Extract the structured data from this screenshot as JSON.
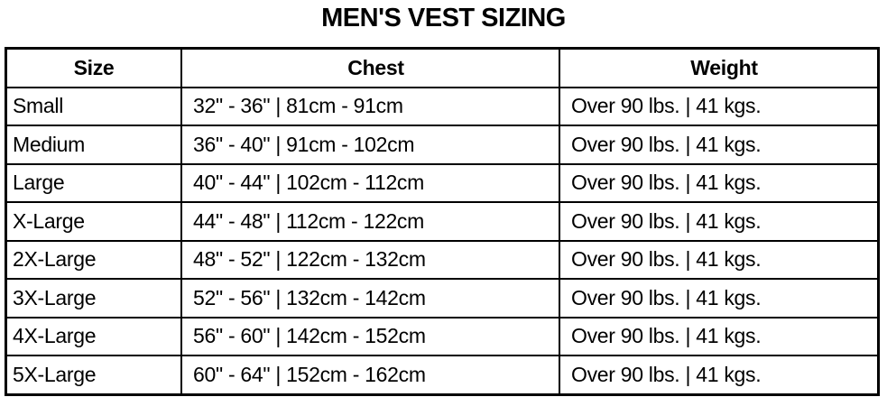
{
  "title": "MEN'S VEST SIZING",
  "table": {
    "headers": [
      "Size",
      "Chest",
      "Weight"
    ],
    "rows": [
      [
        "Small",
        "32\" - 36\" | 81cm - 91cm",
        "Over 90 lbs. | 41 kgs."
      ],
      [
        "Medium",
        "36\" - 40\" | 91cm - 102cm",
        "Over 90 lbs. | 41 kgs."
      ],
      [
        "Large",
        "40\" - 44\" | 102cm - 112cm",
        "Over 90 lbs. | 41 kgs."
      ],
      [
        "X-Large",
        "44\" - 48\" | 112cm - 122cm",
        "Over 90 lbs. | 41 kgs."
      ],
      [
        "2X-Large",
        "48\" - 52\" | 122cm - 132cm",
        "Over 90 lbs. | 41 kgs."
      ],
      [
        "3X-Large",
        "52\" - 56\" | 132cm - 142cm",
        "Over 90 lbs. | 41 kgs."
      ],
      [
        "4X-Large",
        "56\" - 60\" | 142cm - 152cm",
        "Over 90 lbs. | 41 kgs."
      ],
      [
        "5X-Large",
        "60\" - 64\" | 152cm - 162cm",
        "Over 90 lbs. | 41 kgs."
      ]
    ]
  }
}
